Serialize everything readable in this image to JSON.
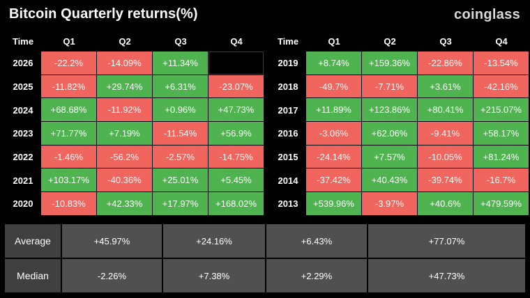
{
  "title": "Bitcoin Quarterly returns(%)",
  "brand": "coinglass",
  "colors": {
    "positive": "#4fb350",
    "negative": "#f0655e",
    "background": "#000000"
  },
  "chart_data": {
    "type": "table",
    "columns": [
      "Time",
      "Q1",
      "Q2",
      "Q3",
      "Q4"
    ],
    "left_rows": [
      {
        "year": "2026",
        "values": [
          "-22.2%",
          "-14.09%",
          "+11.34%",
          ""
        ]
      },
      {
        "year": "2025",
        "values": [
          "-11.82%",
          "+29.74%",
          "+6.31%",
          "-23.07%"
        ]
      },
      {
        "year": "2024",
        "values": [
          "+68.68%",
          "-11.92%",
          "+0.96%",
          "+47.73%"
        ]
      },
      {
        "year": "2023",
        "values": [
          "+71.77%",
          "+7.19%",
          "-11.54%",
          "+56.9%"
        ]
      },
      {
        "year": "2022",
        "values": [
          "-1.46%",
          "-56.2%",
          "-2.57%",
          "-14.75%"
        ]
      },
      {
        "year": "2021",
        "values": [
          "+103.17%",
          "-40.36%",
          "+25.01%",
          "+5.45%"
        ]
      },
      {
        "year": "2020",
        "values": [
          "-10.83%",
          "+42.33%",
          "+17.97%",
          "+168.02%"
        ]
      }
    ],
    "right_rows": [
      {
        "year": "2019",
        "values": [
          "+8.74%",
          "+159.36%",
          "-22.86%",
          "-13.54%"
        ]
      },
      {
        "year": "2018",
        "values": [
          "-49.7%",
          "-7.71%",
          "+3.61%",
          "-42.16%"
        ]
      },
      {
        "year": "2017",
        "values": [
          "+11.89%",
          "+123.86%",
          "+80.41%",
          "+215.07%"
        ]
      },
      {
        "year": "2016",
        "values": [
          "-3.06%",
          "+62.06%",
          "-9.41%",
          "+58.17%"
        ]
      },
      {
        "year": "2015",
        "values": [
          "-24.14%",
          "+7.57%",
          "-10.05%",
          "+81.24%"
        ]
      },
      {
        "year": "2014",
        "values": [
          "-37.42%",
          "+40.43%",
          "-39.74%",
          "-16.7%"
        ]
      },
      {
        "year": "2013",
        "values": [
          "+539.96%",
          "-3.97%",
          "+40.6%",
          "+479.59%"
        ]
      }
    ],
    "summary": [
      {
        "label": "Average",
        "values": [
          "+45.97%",
          "+24.16%",
          "+6.43%",
          "+77.07%"
        ]
      },
      {
        "label": "Median",
        "values": [
          "-2.26%",
          "+7.38%",
          "+2.29%",
          "+47.73%"
        ]
      }
    ]
  }
}
